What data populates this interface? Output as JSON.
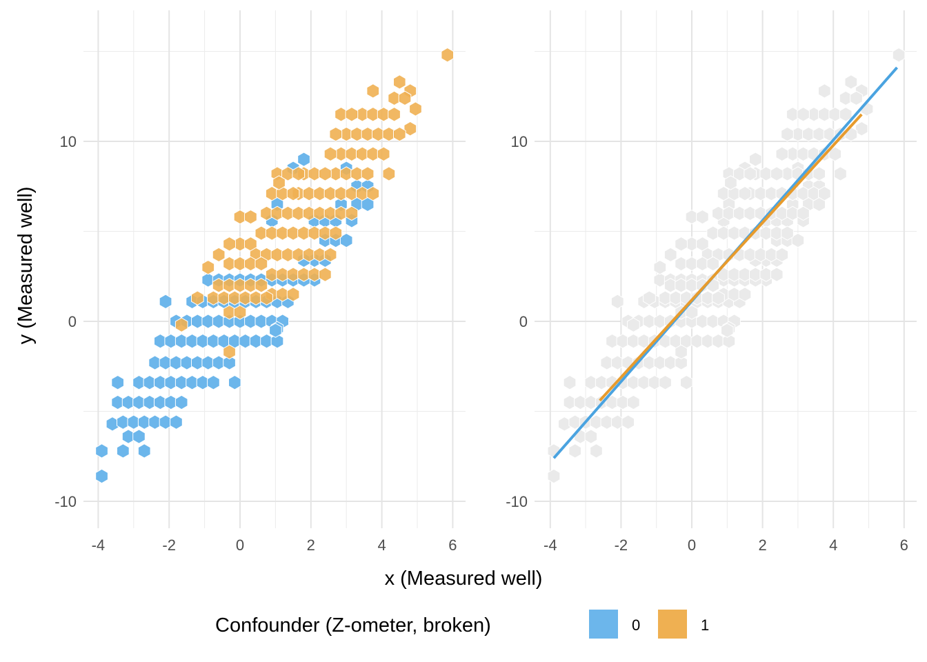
{
  "chart_data": [
    {
      "type": "hexbin",
      "panel": "left",
      "xlabel": "x (Measured well)",
      "ylabel": "y (Measured well)",
      "xlim": [
        -4.2,
        6.4
      ],
      "ylim": [
        -11.2,
        16.8
      ],
      "x_ticks": [
        "-4",
        "-2",
        "0",
        "2",
        "4",
        "6"
      ],
      "y_ticks": [
        "-10",
        "0",
        "10"
      ],
      "grid": true,
      "series": [
        {
          "name": "0",
          "color": "#6CB6EB",
          "points": [
            [
              -3.9,
              -7.2
            ],
            [
              -3.9,
              -8.6
            ],
            [
              -3.6,
              -5.7
            ],
            [
              -3.45,
              -4.5
            ],
            [
              -3.45,
              -3.4
            ],
            [
              -3.3,
              -5.6
            ],
            [
              -3.15,
              -6.4
            ],
            [
              -3.3,
              -7.2
            ],
            [
              -3.15,
              -4.5
            ],
            [
              -3.0,
              -5.6
            ],
            [
              -2.85,
              -6.4
            ],
            [
              -2.85,
              -4.5
            ],
            [
              -2.85,
              -3.4
            ],
            [
              -2.7,
              -5.6
            ],
            [
              -2.55,
              -4.5
            ],
            [
              -2.55,
              -3.4
            ],
            [
              -2.7,
              -7.2
            ],
            [
              -2.4,
              -5.6
            ],
            [
              -2.25,
              -4.5
            ],
            [
              -2.25,
              -3.4
            ],
            [
              -2.1,
              -5.6
            ],
            [
              -1.95,
              -4.5
            ],
            [
              -1.95,
              -3.4
            ],
            [
              -1.8,
              -5.6
            ],
            [
              -2.4,
              -2.3
            ],
            [
              -2.1,
              -2.3
            ],
            [
              -1.8,
              -2.3
            ],
            [
              -1.5,
              -2.3
            ],
            [
              -1.2,
              -2.3
            ],
            [
              -0.9,
              -2.3
            ],
            [
              -0.6,
              -2.3
            ],
            [
              -0.3,
              -2.3
            ],
            [
              -1.65,
              -4.5
            ],
            [
              -1.65,
              -3.4
            ],
            [
              -1.35,
              -3.4
            ],
            [
              -1.05,
              -3.4
            ],
            [
              -0.75,
              -3.4
            ],
            [
              -2.25,
              -1.1
            ],
            [
              -1.95,
              -1.1
            ],
            [
              -1.65,
              -1.1
            ],
            [
              -1.35,
              -1.1
            ],
            [
              -1.05,
              -1.1
            ],
            [
              -0.75,
              -1.1
            ],
            [
              -0.45,
              -1.1
            ],
            [
              -2.1,
              1.1
            ],
            [
              -1.8,
              0.0
            ],
            [
              -1.5,
              0.0
            ],
            [
              -1.2,
              0.0
            ],
            [
              -0.9,
              0.0
            ],
            [
              -0.6,
              0.0
            ],
            [
              -0.3,
              0.0
            ],
            [
              0.0,
              0.0
            ],
            [
              0.3,
              0.0
            ],
            [
              0.6,
              0.0
            ],
            [
              0.9,
              0.0
            ],
            [
              1.2,
              0.0
            ],
            [
              -1.35,
              1.1
            ],
            [
              -1.05,
              1.1
            ],
            [
              -0.75,
              1.1
            ],
            [
              -0.45,
              1.1
            ],
            [
              -0.15,
              1.1
            ],
            [
              0.15,
              1.1
            ],
            [
              0.45,
              1.1
            ],
            [
              0.75,
              1.1
            ],
            [
              1.05,
              1.1
            ],
            [
              1.35,
              1.1
            ],
            [
              -0.9,
              2.3
            ],
            [
              -0.6,
              2.3
            ],
            [
              -0.3,
              2.3
            ],
            [
              0.0,
              2.3
            ],
            [
              0.3,
              2.3
            ],
            [
              0.6,
              2.3
            ],
            [
              0.9,
              2.3
            ],
            [
              1.2,
              2.3
            ],
            [
              1.5,
              2.3
            ],
            [
              -0.15,
              -1.1
            ],
            [
              0.15,
              -1.1
            ],
            [
              0.45,
              -1.1
            ],
            [
              0.75,
              -1.1
            ],
            [
              1.05,
              -1.1
            ],
            [
              -0.15,
              -3.4
            ],
            [
              1.05,
              -0.4
            ],
            [
              2.1,
              2.3
            ],
            [
              1.8,
              2.3
            ],
            [
              2.1,
              3.4
            ],
            [
              1.8,
              3.4
            ],
            [
              2.4,
              3.4
            ],
            [
              2.4,
              4.5
            ],
            [
              2.7,
              4.5
            ],
            [
              3.0,
              4.5
            ],
            [
              3.15,
              5.6
            ],
            [
              3.3,
              6.5
            ],
            [
              2.85,
              6.5
            ],
            [
              3.6,
              6.5
            ],
            [
              3.3,
              7.5
            ],
            [
              3.6,
              7.5
            ],
            [
              1.05,
              6.5
            ],
            [
              0.9,
              5.6
            ],
            [
              2.1,
              5.6
            ],
            [
              2.4,
              5.6
            ],
            [
              2.7,
              5.6
            ],
            [
              1.5,
              8.5
            ],
            [
              1.8,
              9.0
            ],
            [
              3.0,
              8.5
            ],
            [
              1.0,
              -0.5
            ]
          ]
        },
        {
          "name": "1",
          "color": "#EFB052",
          "points": [
            [
              5.85,
              14.8
            ],
            [
              4.5,
              13.3
            ],
            [
              4.8,
              12.8
            ],
            [
              3.75,
              12.8
            ],
            [
              4.35,
              12.4
            ],
            [
              4.65,
              12.4
            ],
            [
              3.45,
              11.5
            ],
            [
              3.75,
              11.5
            ],
            [
              4.05,
              11.5
            ],
            [
              4.95,
              11.8
            ],
            [
              2.85,
              11.5
            ],
            [
              3.15,
              11.5
            ],
            [
              4.35,
              11.5
            ],
            [
              4.8,
              10.7
            ],
            [
              3.0,
              10.4
            ],
            [
              3.3,
              10.4
            ],
            [
              3.6,
              10.4
            ],
            [
              3.9,
              10.4
            ],
            [
              4.2,
              10.4
            ],
            [
              4.5,
              10.4
            ],
            [
              2.7,
              10.4
            ],
            [
              2.85,
              9.3
            ],
            [
              3.15,
              9.3
            ],
            [
              3.45,
              9.3
            ],
            [
              3.75,
              9.3
            ],
            [
              4.05,
              9.3
            ],
            [
              2.55,
              9.3
            ],
            [
              2.7,
              8.2
            ],
            [
              3.0,
              8.2
            ],
            [
              3.3,
              8.2
            ],
            [
              3.6,
              8.2
            ],
            [
              4.2,
              8.2
            ],
            [
              1.8,
              8.2
            ],
            [
              2.1,
              8.2
            ],
            [
              2.4,
              8.2
            ],
            [
              1.05,
              8.2
            ],
            [
              1.35,
              8.2
            ],
            [
              1.65,
              8.2
            ],
            [
              1.65,
              7.1
            ],
            [
              1.95,
              7.1
            ],
            [
              2.25,
              7.1
            ],
            [
              2.55,
              7.1
            ],
            [
              2.85,
              7.1
            ],
            [
              3.15,
              7.1
            ],
            [
              3.45,
              7.1
            ],
            [
              3.75,
              7.1
            ],
            [
              0.9,
              7.1
            ],
            [
              1.2,
              7.1
            ],
            [
              1.5,
              7.1
            ],
            [
              0.75,
              6.0
            ],
            [
              1.05,
              6.0
            ],
            [
              1.35,
              6.0
            ],
            [
              1.65,
              6.0
            ],
            [
              1.95,
              6.0
            ],
            [
              2.25,
              6.0
            ],
            [
              2.55,
              6.0
            ],
            [
              2.85,
              6.0
            ],
            [
              3.15,
              6.0
            ],
            [
              -0.0,
              5.8
            ],
            [
              0.3,
              5.8
            ],
            [
              0.6,
              4.9
            ],
            [
              0.9,
              4.9
            ],
            [
              1.2,
              4.9
            ],
            [
              1.5,
              4.9
            ],
            [
              1.8,
              4.9
            ],
            [
              2.1,
              4.9
            ],
            [
              2.4,
              4.9
            ],
            [
              2.7,
              4.9
            ],
            [
              0.0,
              4.3
            ],
            [
              0.3,
              4.3
            ],
            [
              -0.3,
              4.3
            ],
            [
              -0.6,
              3.7
            ],
            [
              0.45,
              3.7
            ],
            [
              0.75,
              3.7
            ],
            [
              1.05,
              3.7
            ],
            [
              1.35,
              3.7
            ],
            [
              1.65,
              3.7
            ],
            [
              1.95,
              3.7
            ],
            [
              2.25,
              3.7
            ],
            [
              2.55,
              3.7
            ],
            [
              -0.3,
              3.2
            ],
            [
              0.0,
              3.2
            ],
            [
              0.3,
              3.2
            ],
            [
              0.6,
              3.2
            ],
            [
              0.9,
              2.6
            ],
            [
              1.2,
              2.6
            ],
            [
              1.5,
              2.6
            ],
            [
              1.8,
              2.6
            ],
            [
              2.1,
              2.6
            ],
            [
              2.4,
              2.6
            ],
            [
              -0.9,
              3.0
            ],
            [
              -0.6,
              2.0
            ],
            [
              -0.3,
              2.0
            ],
            [
              0.0,
              2.0
            ],
            [
              0.3,
              2.0
            ],
            [
              0.6,
              2.0
            ],
            [
              0.9,
              1.5
            ],
            [
              1.2,
              1.5
            ],
            [
              1.5,
              1.5
            ],
            [
              -0.75,
              1.3
            ],
            [
              -0.45,
              1.3
            ],
            [
              -0.15,
              1.3
            ],
            [
              0.15,
              1.3
            ],
            [
              0.45,
              1.3
            ],
            [
              0.75,
              1.3
            ],
            [
              -1.2,
              1.3
            ],
            [
              -1.65,
              -0.2
            ],
            [
              -0.3,
              0.5
            ],
            [
              0.0,
              0.5
            ],
            [
              -0.3,
              -1.7
            ],
            [
              1.1,
              7.7
            ]
          ]
        }
      ]
    },
    {
      "type": "hexbin+line",
      "panel": "right",
      "xlim": [
        -4.2,
        6.4
      ],
      "ylim": [
        -11.2,
        16.8
      ],
      "x_ticks": [
        "-4",
        "-2",
        "0",
        "2",
        "4",
        "6"
      ],
      "y_ticks": [
        "-10",
        "0",
        "10"
      ],
      "grid": true,
      "background_color": "#EAEAEA",
      "lines": [
        {
          "name": "0",
          "color": "#4AA3E0",
          "x": [
            -3.9,
            5.8
          ],
          "y": [
            -7.6,
            14.1
          ]
        },
        {
          "name": "1",
          "color": "#E79B2D",
          "x": [
            -2.6,
            4.8
          ],
          "y": [
            -4.4,
            11.5
          ]
        }
      ]
    }
  ],
  "legend": {
    "title": "Confounder (Z-ometer, broken)",
    "items": [
      {
        "label": "0",
        "color": "#6CB6EB"
      },
      {
        "label": "1",
        "color": "#EFB052"
      }
    ]
  }
}
